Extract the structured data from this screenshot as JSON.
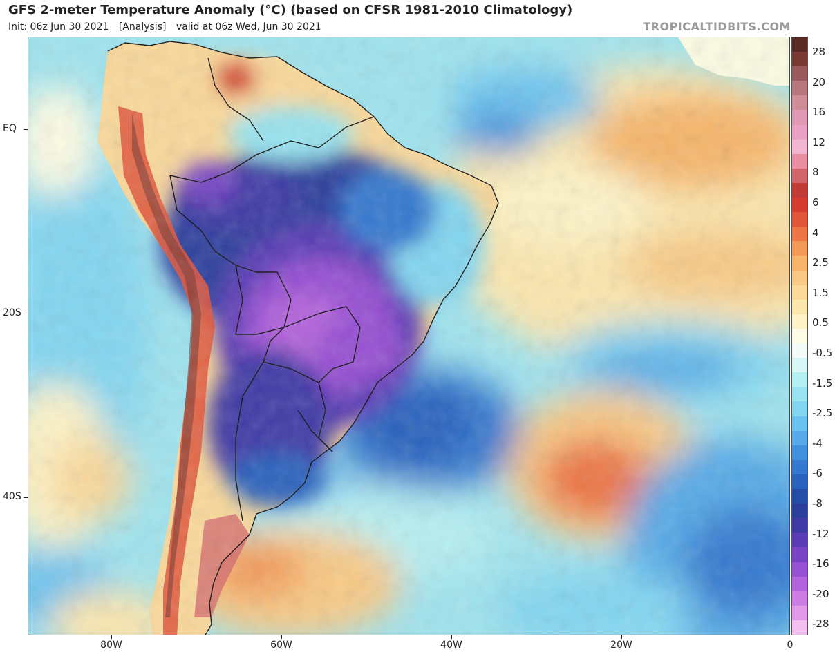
{
  "header": {
    "title": "GFS 2-meter Temperature Anomaly (°C) (based on CFSR 1981-2010 Climatology)",
    "init": "Init: 06z Jun 30 2021",
    "analysis": "[Analysis]",
    "valid": "valid at 06z Wed, Jun 30 2021",
    "brand": "TROPICALTIDBITS.COM"
  },
  "axes": {
    "lat_labels": [
      "EQ",
      "20S",
      "40S"
    ],
    "lon_labels": [
      "80W",
      "60W",
      "40W",
      "20W",
      "0"
    ]
  },
  "legend": {
    "labels": [
      "28",
      "20",
      "16",
      "12",
      "8",
      "6",
      "4",
      "2.5",
      "1.5",
      "0.5",
      "-0.5",
      "-1.5",
      "-2.5",
      "-4",
      "-6",
      "-8",
      "-12",
      "-16",
      "-20",
      "-28"
    ],
    "colors": [
      "#5a2b24",
      "#7a3a34",
      "#9b5a5e",
      "#b9787d",
      "#cf8d98",
      "#e199b3",
      "#e9a2c4",
      "#f0b6d2",
      "#e98ea3",
      "#d2656b",
      "#c23a35",
      "#d43a2e",
      "#e1553a",
      "#ec7545",
      "#f39a58",
      "#f6b56b",
      "#f8c985",
      "#f9d89a",
      "#fbe6ae",
      "#fdf3c7",
      "#fcfbe3",
      "#f3fbf9",
      "#d9f6f6",
      "#b6eff2",
      "#98e3ef",
      "#82d5f0",
      "#6cc2ee",
      "#57aae7",
      "#4390dc",
      "#3479cf",
      "#2a62bd",
      "#254da8",
      "#2d3f9d",
      "#3f3aa6",
      "#5a3cb6",
      "#7644c4",
      "#9650d2",
      "#b364dc",
      "#cb7de3",
      "#e19aea",
      "#f1c0ef"
    ]
  }
}
